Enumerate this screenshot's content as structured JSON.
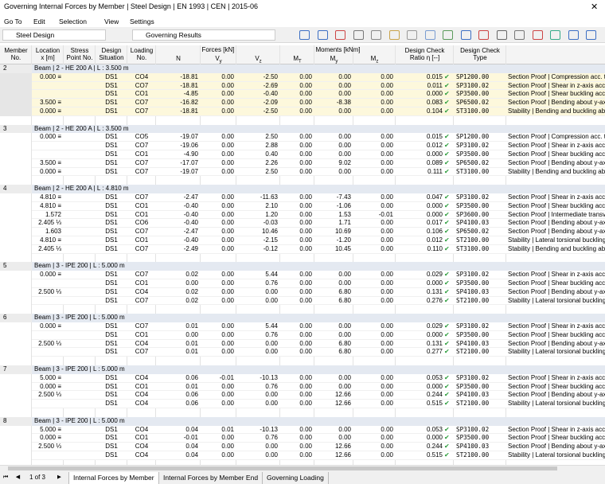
{
  "window": {
    "title": "Governing Internal Forces by Member | Steel Design | EN 1993 | CEN | 2015-06"
  },
  "menu": [
    "Go To",
    "Edit",
    "Selection",
    "View",
    "Settings"
  ],
  "toolbar": {
    "module": "Steel Design",
    "results": "Governing Results"
  },
  "table": {
    "header_groups": {
      "forces": "Forces [kN]",
      "moments": "Moments [kNm]"
    },
    "columns": [
      {
        "lines": [
          "Member",
          "No."
        ]
      },
      {
        "lines": [
          "Location",
          "x [m]"
        ]
      },
      {
        "lines": [
          "Stress",
          "Point No."
        ]
      },
      {
        "lines": [
          "Design",
          "Situation"
        ]
      },
      {
        "lines": [
          "Loading",
          "No."
        ]
      },
      {
        "symbol": "N"
      },
      {
        "symbol": "V",
        "sub": "y"
      },
      {
        "symbol": "V",
        "sub": "z"
      },
      {
        "symbol": "M",
        "sub": "T"
      },
      {
        "symbol": "M",
        "sub": "y"
      },
      {
        "symbol": "M",
        "sub": "z"
      },
      {
        "lines": [
          "Design Check",
          "Ratio η [--]"
        ]
      },
      {
        "lines": [
          "Design Check",
          "Type"
        ]
      }
    ],
    "groups": [
      {
        "member": "2",
        "beam": "Beam | 2 - HE 200 A | L : 3.500 m",
        "rows": [
          [
            "0.000 ≡",
            "DS1",
            "CO4",
            "-18.81",
            "0.00",
            "-2.50",
            "0.00",
            "0.00",
            "0.00",
            "0.015",
            "SP1200.00",
            "Section Proof | Compression acc. to"
          ],
          [
            "",
            "DS1",
            "CO7",
            "-18.81",
            "0.00",
            "-2.69",
            "0.00",
            "0.00",
            "0.00",
            "0.011",
            "SP3100.02",
            "Section Proof | Shear in z-axis acc. to"
          ],
          [
            "",
            "DS1",
            "CO1",
            "-4.85",
            "0.00",
            "-0.40",
            "0.00",
            "0.00",
            "0.00",
            "0.000",
            "SP3500.00",
            "Section Proof | Shear buckling acc. to"
          ],
          [
            "3.500 ≡",
            "DS1",
            "CO7",
            "-16.82",
            "0.00",
            "-2.09",
            "0.00",
            "-8.38",
            "0.00",
            "0.083",
            "SP6500.02",
            "Section Proof | Bending about y-axis"
          ],
          [
            "0.000 ≡",
            "DS1",
            "CO7",
            "-18.81",
            "0.00",
            "-2.50",
            "0.00",
            "0.00",
            "0.00",
            "0.104",
            "ST3100.00",
            "Stability | Bending and buckling about"
          ]
        ]
      },
      {
        "member": "3",
        "beam": "Beam | 2 - HE 200 A | L : 3.500 m",
        "rows": [
          [
            "0.000 ≡",
            "DS1",
            "CO5",
            "-19.07",
            "0.00",
            "2.50",
            "0.00",
            "0.00",
            "0.00",
            "0.015",
            "SP1200.00",
            "Section Proof | Compression acc. to"
          ],
          [
            "",
            "DS1",
            "CO7",
            "-19.06",
            "0.00",
            "2.88",
            "0.00",
            "0.00",
            "0.00",
            "0.012",
            "SP3100.02",
            "Section Proof | Shear in z-axis acc. to"
          ],
          [
            "",
            "DS1",
            "CO1",
            "-4.90",
            "0.00",
            "0.40",
            "0.00",
            "0.00",
            "0.00",
            "0.000",
            "SP3500.00",
            "Section Proof | Shear buckling acc. to"
          ],
          [
            "3.500 ≡",
            "DS1",
            "CO7",
            "-17.07",
            "0.00",
            "2.26",
            "0.00",
            "9.02",
            "0.00",
            "0.089",
            "SP6500.02",
            "Section Proof | Bending about y-axis"
          ],
          [
            "0.000 ≡",
            "DS1",
            "CO7",
            "-19.07",
            "0.00",
            "2.50",
            "0.00",
            "0.00",
            "0.00",
            "0.111",
            "ST3100.00",
            "Stability | Bending and buckling about"
          ]
        ]
      },
      {
        "member": "4",
        "beam": "Beam | 2 - HE 200 A | L : 4.810 m",
        "rows": [
          [
            "4.810 ≡",
            "DS1",
            "CO7",
            "-2.47",
            "0.00",
            "-11.63",
            "0.00",
            "-7.43",
            "0.00",
            "0.047",
            "SP3100.02",
            "Section Proof | Shear in z-axis acc. to"
          ],
          [
            "4.810 ≡",
            "DS1",
            "CO1",
            "-0.40",
            "0.00",
            "2.10",
            "0.00",
            "-1.06",
            "0.00",
            "0.000",
            "SP3500.00",
            "Section Proof | Shear buckling acc. to"
          ],
          [
            "1.572",
            "DS1",
            "CO1",
            "-0.40",
            "0.00",
            "1.20",
            "0.00",
            "1.53",
            "-0.01",
            "0.000",
            "SP3600.00",
            "Section Proof | Intermediate transverse"
          ],
          [
            "2.405 ⅓",
            "DS1",
            "CO6",
            "-0.40",
            "0.00",
            "-0.03",
            "0.00",
            "1.71",
            "0.00",
            "0.017",
            "SP4100.03",
            "Section Proof | Bending about y-axis"
          ],
          [
            "1.603",
            "DS1",
            "CO7",
            "-2.47",
            "0.00",
            "10.46",
            "0.00",
            "10.69",
            "0.00",
            "0.106",
            "SP6500.02",
            "Section Proof | Bending about y-axis"
          ],
          [
            "4.810 ≡",
            "DS1",
            "CO1",
            "-0.40",
            "0.00",
            "-2.15",
            "0.00",
            "-1.20",
            "0.00",
            "0.012",
            "ST2100.00",
            "Stability | Lateral torsional buckling"
          ],
          [
            "2.405 ⅓",
            "DS1",
            "CO7",
            "-2.49",
            "0.00",
            "-0.12",
            "0.00",
            "10.45",
            "0.00",
            "0.110",
            "ST3100.00",
            "Stability | Bending and buckling about"
          ]
        ]
      },
      {
        "member": "5",
        "beam": "Beam | 3 - IPE 200 | L : 5.000 m",
        "rows": [
          [
            "0.000 ≡",
            "DS1",
            "CO7",
            "0.02",
            "0.00",
            "5.44",
            "0.00",
            "0.00",
            "0.00",
            "0.029",
            "SP3100.02",
            "Section Proof | Shear in z-axis acc. to"
          ],
          [
            "",
            "DS1",
            "CO1",
            "0.00",
            "0.00",
            "0.76",
            "0.00",
            "0.00",
            "0.00",
            "0.000",
            "SP3500.00",
            "Section Proof | Shear buckling acc. to"
          ],
          [
            "2.500 ⅓",
            "DS1",
            "CO4",
            "0.02",
            "0.00",
            "0.00",
            "0.00",
            "6.80",
            "0.00",
            "0.131",
            "SP4100.03",
            "Section Proof | Bending about y-axis"
          ],
          [
            "",
            "DS1",
            "CO7",
            "0.02",
            "0.00",
            "0.00",
            "0.00",
            "6.80",
            "0.00",
            "0.276",
            "ST2100.00",
            "Stability | Lateral torsional buckling"
          ]
        ]
      },
      {
        "member": "6",
        "beam": "Beam | 3 - IPE 200 | L : 5.000 m",
        "rows": [
          [
            "0.000 ≡",
            "DS1",
            "CO7",
            "0.01",
            "0.00",
            "5.44",
            "0.00",
            "0.00",
            "0.00",
            "0.029",
            "SP3100.02",
            "Section Proof | Shear in z-axis acc. to"
          ],
          [
            "",
            "DS1",
            "CO1",
            "0.00",
            "0.00",
            "0.76",
            "0.00",
            "0.00",
            "0.00",
            "0.000",
            "SP3500.00",
            "Section Proof | Shear buckling acc. to"
          ],
          [
            "2.500 ⅓",
            "DS1",
            "CO4",
            "0.01",
            "0.00",
            "0.00",
            "0.00",
            "6.80",
            "0.00",
            "0.131",
            "SP4100.03",
            "Section Proof | Bending about y-axis"
          ],
          [
            "",
            "DS1",
            "CO7",
            "0.01",
            "0.00",
            "0.00",
            "0.00",
            "6.80",
            "0.00",
            "0.277",
            "ST2100.00",
            "Stability | Lateral torsional buckling"
          ]
        ]
      },
      {
        "member": "7",
        "beam": "Beam | 3 - IPE 200 | L : 5.000 m",
        "rows": [
          [
            "5.000 ≡",
            "DS1",
            "CO4",
            "0.06",
            "-0.01",
            "-10.13",
            "0.00",
            "0.00",
            "0.00",
            "0.053",
            "SP3100.02",
            "Section Proof | Shear in z-axis acc. to"
          ],
          [
            "0.000 ≡",
            "DS1",
            "CO1",
            "0.01",
            "0.00",
            "0.76",
            "0.00",
            "0.00",
            "0.00",
            "0.000",
            "SP3500.00",
            "Section Proof | Shear buckling acc. to"
          ],
          [
            "2.500 ⅓",
            "DS1",
            "CO4",
            "0.06",
            "0.00",
            "0.00",
            "0.00",
            "12.66",
            "0.00",
            "0.244",
            "SP4100.03",
            "Section Proof | Bending about y-axis"
          ],
          [
            "",
            "DS1",
            "CO4",
            "0.06",
            "0.00",
            "0.00",
            "0.00",
            "12.66",
            "0.00",
            "0.515",
            "ST2100.00",
            "Stability | Lateral torsional buckling"
          ]
        ]
      },
      {
        "member": "8",
        "beam": "Beam | 3 - IPE 200 | L : 5.000 m",
        "rows": [
          [
            "5.000 ≡",
            "DS1",
            "CO4",
            "0.04",
            "0.01",
            "-10.13",
            "0.00",
            "0.00",
            "0.00",
            "0.053",
            "SP3100.02",
            "Section Proof | Shear in z-axis acc. to"
          ],
          [
            "0.000 ≡",
            "DS1",
            "CO1",
            "-0.01",
            "0.00",
            "0.76",
            "0.00",
            "0.00",
            "0.00",
            "0.000",
            "SP3500.00",
            "Section Proof | Shear buckling acc. to"
          ],
          [
            "2.500 ⅓",
            "DS1",
            "CO4",
            "0.04",
            "0.00",
            "0.00",
            "0.00",
            "12.66",
            "0.00",
            "0.244",
            "SP4100.03",
            "Section Proof | Bending about y-axis"
          ],
          [
            "",
            "DS1",
            "CO4",
            "0.04",
            "0.00",
            "0.00",
            "0.00",
            "12.66",
            "0.00",
            "0.515",
            "ST2100.00",
            "Stability | Lateral torsional buckling"
          ]
        ]
      }
    ]
  },
  "footer": {
    "page": "1 of 3",
    "tabs": [
      "Internal Forces by Member",
      "Internal Forces by Member End",
      "Governing Loading"
    ]
  }
}
